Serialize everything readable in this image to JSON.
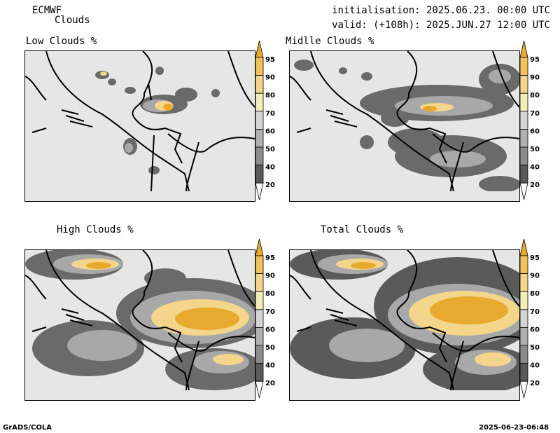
{
  "header": {
    "model": "ECMWF",
    "product": "Clouds",
    "init": "initialisation: 2025.06.23. 00:00 UTC",
    "valid": "valid: (+108h): 2025.JUN.27 12:00 UTC"
  },
  "panels": [
    {
      "title": "Low Clouds %"
    },
    {
      "title": "Midlle Clouds %"
    },
    {
      "title": "High Clouds %"
    },
    {
      "title": "Total Clouds %"
    }
  ],
  "colorbar": {
    "labels": [
      "95",
      "90",
      "80",
      "70",
      "60",
      "50",
      "40",
      "20"
    ],
    "colors": [
      "#e8a92f",
      "#f0c25a",
      "#f3d68c",
      "#f4efb8",
      "#d4d4d4",
      "#b0b0b0",
      "#8c8c8c",
      "#5a5a5a",
      "#f8f8f8"
    ]
  },
  "footer": {
    "left": "GrADS/COLA",
    "right": "2025-06-23-06:48"
  }
}
